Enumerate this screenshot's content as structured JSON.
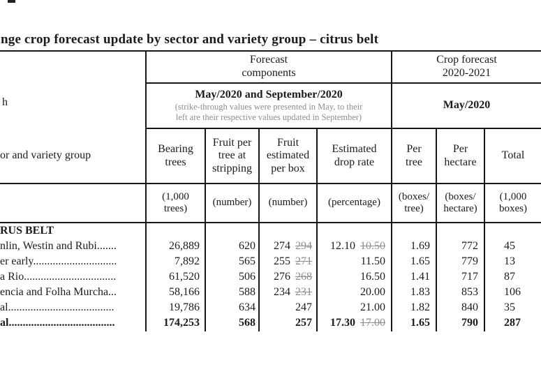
{
  "title": "nge crop forecast update by sector and variety group – citrus belt",
  "colors": {
    "border": "#161616",
    "strike_gray": "#8e8e8e",
    "note_gray": "#8d8d8d",
    "text": "#1b1b1b"
  },
  "header": {
    "left_fragment": "h",
    "forecast_components": "Forecast\ncomponents",
    "period_title": "May/2020 and September/2020",
    "period_note": "(strike-through values were presented in May, to their\nleft are their respective values updated in September)",
    "crop_forecast_title": "Crop forecast\n2020-2021",
    "crop_forecast_period": "May/2020",
    "row_label_fragment": "or and variety group"
  },
  "columns": [
    {
      "label": "Bearing\ntrees",
      "unit": "(1,000\ntrees)"
    },
    {
      "label": "Fruit per\ntree at\nstripping",
      "unit": "(number)"
    },
    {
      "label": "Fruit\nestimated\nper box",
      "unit": "(number)"
    },
    {
      "label": "Estimated\ndrop rate",
      "unit": "(percentage)"
    },
    {
      "label": "Per\ntree",
      "unit": "(boxes/\ntree)"
    },
    {
      "label": "Per\nhectare",
      "unit": "(boxes/\nhectare)"
    },
    {
      "label": "Total",
      "unit": "(1,000\nboxes)"
    }
  ],
  "rows": [
    {
      "label": "RUS BELT"
    },
    {
      "label": "nlin, Westin and Rubi.......",
      "bearing_trees": "26,889",
      "fruit_per_tree": "620",
      "fruit_per_box": "274",
      "fruit_per_box_may": "294",
      "drop_rate": "12.10",
      "drop_rate_may": "10.50",
      "per_tree": "1.69",
      "per_hectare": "772",
      "total": "45"
    },
    {
      "label": "er early..............................",
      "bearing_trees": "7,892",
      "fruit_per_tree": "565",
      "fruit_per_box": "255",
      "fruit_per_box_may": "271",
      "drop_rate": "11.50",
      "per_tree": "1.65",
      "per_hectare": "779",
      "total": "13"
    },
    {
      "label": "a Rio.................................",
      "bearing_trees": "61,520",
      "fruit_per_tree": "506",
      "fruit_per_box": "276",
      "fruit_per_box_may": "268",
      "drop_rate": "16.50",
      "per_tree": "1.41",
      "per_hectare": "717",
      "total": "87"
    },
    {
      "label": "encia and Folha Murcha...",
      "bearing_trees": "58,166",
      "fruit_per_tree": "588",
      "fruit_per_box": "234",
      "fruit_per_box_may": "231",
      "drop_rate": "20.00",
      "per_tree": "1.83",
      "per_hectare": "853",
      "total": "106"
    },
    {
      "label": "al......................................",
      "bearing_trees": "19,786",
      "fruit_per_tree": "634",
      "fruit_per_box": "247",
      "drop_rate": "21.00",
      "per_tree": "1.82",
      "per_hectare": "840",
      "total": "35"
    },
    {
      "label": "al......................................",
      "bearing_trees": "174,253",
      "fruit_per_tree": "568",
      "fruit_per_box": "257",
      "drop_rate": "17.30",
      "drop_rate_may": "17.00",
      "per_tree": "1.65",
      "per_hectare": "790",
      "total": "287"
    }
  ]
}
